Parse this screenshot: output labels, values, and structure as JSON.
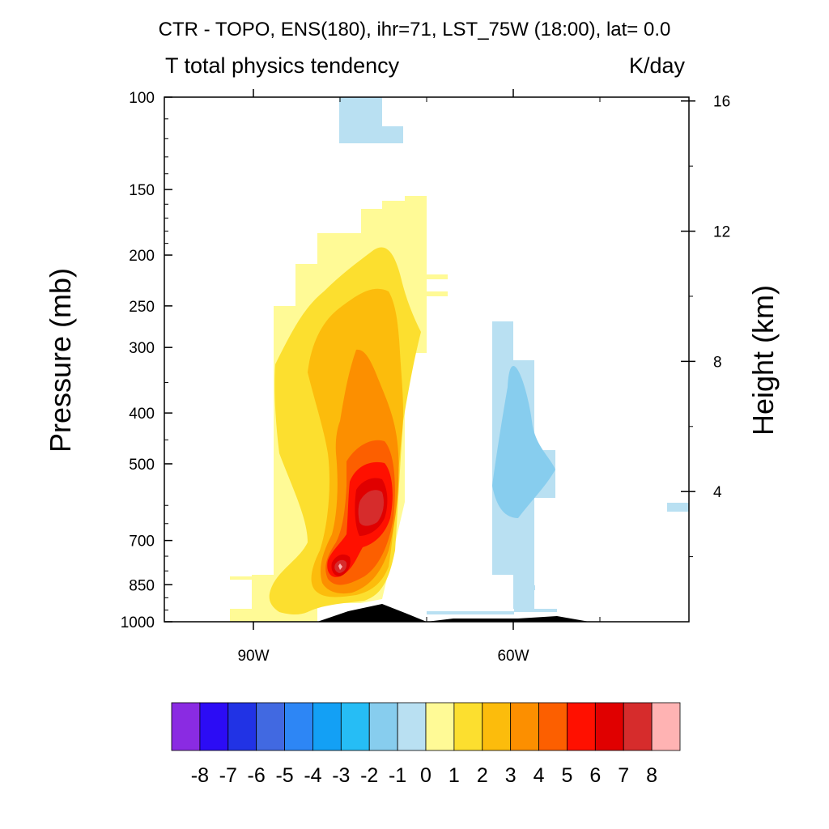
{
  "chart_data": {
    "type": "heatmap",
    "title": "CTR - TOPO, ENS(180), ihr=71, LST_75W (18:00), lat=  0.0",
    "subtitle_left": "T total physics tendency",
    "subtitle_right": "K/day",
    "ylabel": "Pressure (mb)",
    "ylabel_right": "Height (km)",
    "x_ticks": [
      "90W",
      "60W"
    ],
    "y_ticks_left": [
      "100",
      "150",
      "200",
      "250",
      "300",
      "400",
      "500",
      "700",
      "850",
      "1000"
    ],
    "y_ticks_right": [
      "16",
      "12",
      "8",
      "4"
    ],
    "ylim": [
      1000,
      100
    ],
    "y_scale": "log",
    "colorbar": {
      "labels": [
        "-8",
        "-7",
        "-6",
        "-5",
        "-4",
        "-3",
        "-2",
        "-1",
        "0",
        "1",
        "2",
        "3",
        "4",
        "5",
        "6",
        "7",
        "8"
      ],
      "colors": [
        "#8a2be2",
        "#2c0cf5",
        "#2133e5",
        "#4169e1",
        "#2d86f5",
        "#13a0f5",
        "#26bdf5",
        "#87cdee",
        "#b9e0f2",
        "#fffa96",
        "#fcdf2f",
        "#fcbc0c",
        "#fc8f00",
        "#fc5f00",
        "#ff1000",
        "#e00000",
        "#d62c2c",
        "#ffb3b3"
      ]
    },
    "colors": {
      "negative_weak": "#b9e0f2",
      "negative_moderate": "#87cdee",
      "terrain": "#000000"
    }
  }
}
